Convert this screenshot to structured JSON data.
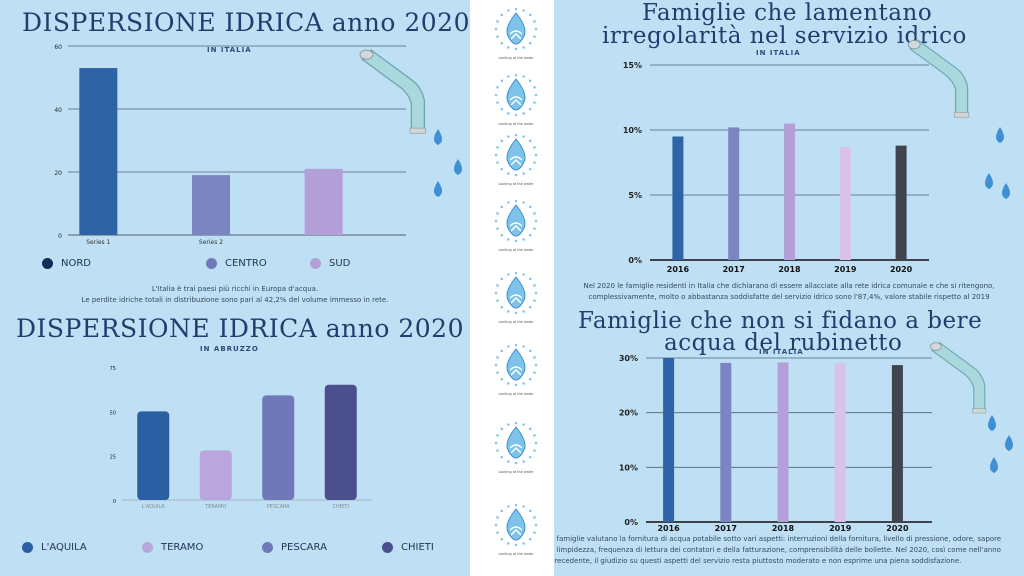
{
  "panel_tl": {
    "title": "DISPERSIONE IDRICA anno 2020",
    "subtitle": "IN ITALIA",
    "note_line1": "L'Italia è trai paesi più ricchi in Europa d'acqua.",
    "note_line2": "Le perdite idriche totali in distribuzione sono pari al 42,2% del volume immesso in rete.",
    "legend": [
      {
        "label": "NORD",
        "color": "#0f2d55"
      },
      {
        "label": "CENTRO",
        "color": "#6f78b8"
      },
      {
        "label": "SUD",
        "color": "#b3a0d8"
      }
    ]
  },
  "panel_bl": {
    "title": "DISPERSIONE IDRICA anno 2020",
    "subtitle": "IN ABRUZZO",
    "legend": [
      {
        "label": "L'AQUILA",
        "color": "#2a5fa3"
      },
      {
        "label": "TERAMO",
        "color": "#b8a6dc"
      },
      {
        "label": "PESCARA",
        "color": "#6f78b8"
      },
      {
        "label": "CHIETI",
        "color": "#4c4f8e"
      }
    ]
  },
  "panel_tr": {
    "title_line1": "Famiglie che lamentano",
    "title_line2": "irregolarità nel servizio idrico",
    "subtitle": "IN ITALIA",
    "note_line1": "Nel 2020 le famiglie residenti in Italia che dichiarano di essere allacciate alla rete idrica comunale e che si ritengono,",
    "note_line2": "complessivamente, molto o abbastanza soddisfatte del servizio idrico sono l'87,4%, valore stabile rispetto al 2019"
  },
  "panel_br": {
    "title_line1": "Famiglie che non si fidano a bere",
    "title_line2": "acqua del rubinetto",
    "subtitle": "IN ITALIA",
    "note_line1": "e famiglie valutano la fornitura di acqua potabile sotto vari aspetti: interruzioni della fornitura, livello di pressione, odore, sapore",
    "note_line2": "e limpidezza, frequenza di lettura dei contatori e della fatturazione, comprensibilità delle bollette. Nel 2020, così come nell'anno",
    "note_line3": "precedente, il giudizio su questi aspetti del servizio resta piuttosto moderato e non esprime una piena soddisfazione."
  },
  "logo_caption": "Looking at the water",
  "chart_data": [
    {
      "type": "bar",
      "title": "DISPERSIONE IDRICA anno 2020",
      "subtitle": "IN ITALIA",
      "categories": [
        "Series 1",
        "Series 2",
        ""
      ],
      "series": [
        {
          "name": "NORD",
          "values": [
            53,
            null,
            null
          ],
          "color": "#2e63a6"
        },
        {
          "name": "CENTRO",
          "values": [
            null,
            19,
            null
          ],
          "color": "#7a85c2"
        },
        {
          "name": "SUD",
          "values": [
            null,
            null,
            21
          ],
          "color": "#b3a0d8"
        }
      ],
      "ylim": [
        0,
        60
      ],
      "yticks": [
        0,
        20,
        40,
        60
      ],
      "grid": true,
      "legend": "bottom"
    },
    {
      "type": "bar",
      "title": "DISPERSIONE IDRICA anno 2020",
      "subtitle": "IN ABRUZZO",
      "categories": [
        "L'AQUILA",
        "TERAMO",
        "PESCARA",
        "CHIETI"
      ],
      "values": [
        50,
        28,
        59,
        65
      ],
      "colors": [
        "#2a5fa3",
        "#b8a6dc",
        "#6f78b8",
        "#4c4f8e"
      ],
      "ylim": [
        0,
        75
      ],
      "yticks": [
        0,
        25,
        50,
        75
      ],
      "grid": false,
      "legend": "bottom"
    },
    {
      "type": "bar",
      "title": "Famiglie che lamentano irregolarità nel servizio idrico",
      "subtitle": "IN ITALIA",
      "categories": [
        "2016",
        "2017",
        "2018",
        "2019",
        "2020"
      ],
      "values": [
        9.5,
        10.2,
        10.5,
        8.7,
        8.8
      ],
      "colors": [
        "#2e63a6",
        "#7a85c2",
        "#b3a0d8",
        "#d8c2ea",
        "#3f444f"
      ],
      "ylim": [
        0,
        15
      ],
      "yticks": [
        0,
        5,
        10,
        15
      ],
      "ytick_labels": [
        "0%",
        "5%",
        "10%",
        "15%"
      ],
      "grid": true
    },
    {
      "type": "bar",
      "title": "Famiglie che non si fidano a bere acqua del rubinetto",
      "subtitle": "IN ITALIA",
      "categories": [
        "2016",
        "2017",
        "2018",
        "2019",
        "2020"
      ],
      "values": [
        30,
        29.1,
        29.2,
        29.1,
        28.7
      ],
      "colors": [
        "#2e63a6",
        "#7a85c2",
        "#b3a0d8",
        "#d8c2ea",
        "#3f444f"
      ],
      "ylim": [
        0,
        30
      ],
      "yticks": [
        0,
        10,
        20,
        30
      ],
      "ytick_labels": [
        "0%",
        "10%",
        "20%",
        "30%"
      ],
      "grid": true
    }
  ]
}
